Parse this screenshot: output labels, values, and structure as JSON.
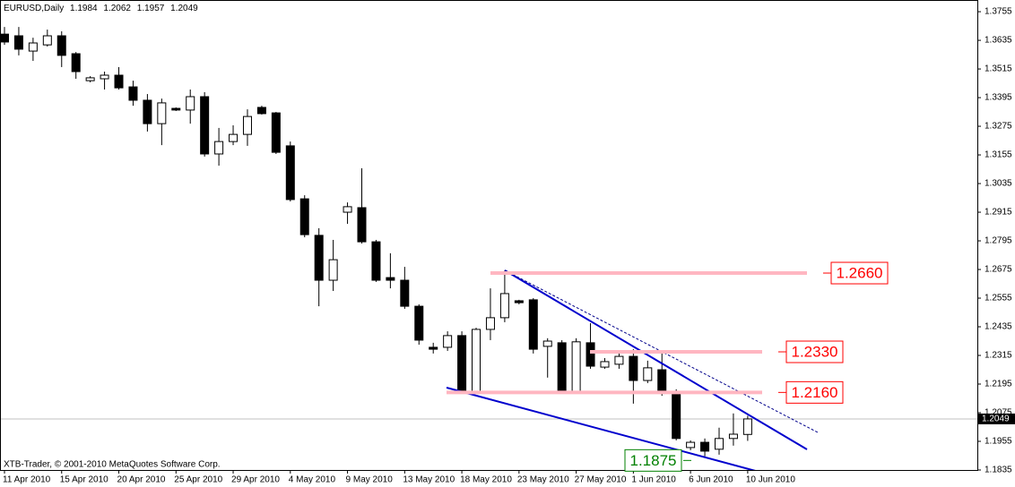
{
  "chart_data": {
    "type": "candlestick",
    "title": "EURUSD,Daily",
    "credit": "XTB-Trader, © 2001-2010 MetaQuotes Software Corp.",
    "categories": [
      "11 Apr 2010",
      null,
      null,
      null,
      "15 Apr 2010",
      null,
      null,
      null,
      "20 Apr 2010",
      null,
      null,
      null,
      "25 Apr 2010",
      null,
      null,
      null,
      "29 Apr 2010",
      null,
      null,
      null,
      "4 May 2010",
      null,
      null,
      null,
      "9 May 2010",
      null,
      null,
      null,
      "13 May 2010",
      null,
      null,
      null,
      "18 May 2010",
      null,
      null,
      null,
      "23 May 2010",
      null,
      null,
      null,
      "27 May 2010",
      null,
      null,
      null,
      "1 Jun 2010",
      null,
      null,
      null,
      "6 Jun 2010",
      null,
      null,
      null,
      "10 Jun 2010"
    ],
    "open": [
      1.3661,
      1.3654,
      1.359,
      1.3616,
      1.3654,
      1.3579,
      1.3466,
      1.3474,
      1.3489,
      1.344,
      1.3384,
      1.3286,
      1.335,
      1.3343,
      1.3399,
      1.3159,
      1.3211,
      1.3241,
      1.3354,
      1.3331,
      1.3193,
      1.2971,
      1.2818,
      1.263,
      1.2915,
      1.2934,
      1.2791,
      1.2641,
      1.263,
      1.2521,
      1.2349,
      1.2349,
      1.2398,
      1.2165,
      1.2424,
      1.2473,
      1.2544,
      1.2548,
      1.2353,
      1.2368,
      1.2162,
      1.2368,
      1.2266,
      1.2278,
      1.2311,
      1.221,
      1.2255,
      1.2154,
      1.1929,
      1.1951,
      1.1922,
      1.1967,
      1.1984
    ],
    "high": [
      1.3691,
      1.3691,
      1.3646,
      1.368,
      1.3673,
      1.3586,
      1.3485,
      1.3504,
      1.3523,
      1.3466,
      1.341,
      1.3391,
      1.3354,
      1.3429,
      1.3418,
      1.3268,
      1.3279,
      1.3346,
      1.3361,
      1.3335,
      1.3211,
      1.2986,
      1.2848,
      1.2799,
      1.2956,
      1.3099,
      1.2799,
      1.2743,
      1.2686,
      1.2529,
      1.2368,
      1.2416,
      1.2416,
      1.2431,
      1.2596,
      1.2671,
      1.2548,
      1.2555,
      1.2387,
      1.2379,
      1.2387,
      1.245,
      1.2304,
      1.2334,
      1.2341,
      1.2293,
      1.233,
      1.2173,
      1.1959,
      1.1967,
      1.2012,
      1.2072,
      1.2062
    ],
    "low": [
      1.3616,
      1.3572,
      1.3549,
      1.3609,
      1.3523,
      1.3474,
      1.3459,
      1.3429,
      1.3429,
      1.3361,
      1.3253,
      1.3196,
      1.3339,
      1.3286,
      1.3148,
      1.311,
      1.3196,
      1.3193,
      1.3324,
      1.3159,
      1.296,
      1.281,
      1.2521,
      1.2585,
      1.2866,
      1.2784,
      1.2623,
      1.2596,
      1.251,
      1.236,
      1.2323,
      1.2334,
      1.2154,
      1.2154,
      1.2379,
      1.2454,
      1.2529,
      1.2323,
      1.2222,
      1.2154,
      1.2154,
      1.2259,
      1.2259,
      1.2259,
      1.2113,
      1.2199,
      1.2146,
      1.1959,
      1.1918,
      1.1892,
      1.1899,
      1.1937,
      1.1957
    ],
    "close": [
      1.3628,
      1.3598,
      1.3624,
      1.3654,
      1.3572,
      1.3504,
      1.3478,
      1.3489,
      1.3436,
      1.3384,
      1.3286,
      1.3373,
      1.3343,
      1.3399,
      1.3159,
      1.3211,
      1.3241,
      1.3316,
      1.3328,
      1.3166,
      1.2968,
      1.2821,
      1.263,
      1.2716,
      1.2938,
      1.2791,
      1.263,
      1.263,
      1.2521,
      1.2379,
      1.2341,
      1.2398,
      1.2165,
      1.2424,
      1.2473,
      1.2574,
      1.2536,
      1.2341,
      1.2375,
      1.2162,
      1.2372,
      1.227,
      1.2289,
      1.2311,
      1.221,
      1.2263,
      1.2162,
      1.1967,
      1.1951,
      1.1914,
      1.1967,
      1.1985,
      1.2049
    ],
    "up_color": "#ffffff",
    "down_color": "#000000",
    "ylim": [
      1.1835,
      1.3804
    ],
    "yticks": [
      1.1835,
      1.1955,
      1.2075,
      1.2195,
      1.2315,
      1.2435,
      1.2555,
      1.2675,
      1.2795,
      1.2915,
      1.3035,
      1.3155,
      1.3275,
      1.3395,
      1.3515,
      1.3635,
      1.3755
    ],
    "grid": false,
    "levels": [
      {
        "value": 1.266,
        "label": "1.2660",
        "color": "#ff0000"
      },
      {
        "value": 1.233,
        "label": "1.2330",
        "color": "#ff0000"
      },
      {
        "value": 1.216,
        "label": "1.2160",
        "color": "#ff0000"
      },
      {
        "value": 1.1875,
        "label": "1.1875",
        "color": "#008000"
      }
    ]
  }
}
